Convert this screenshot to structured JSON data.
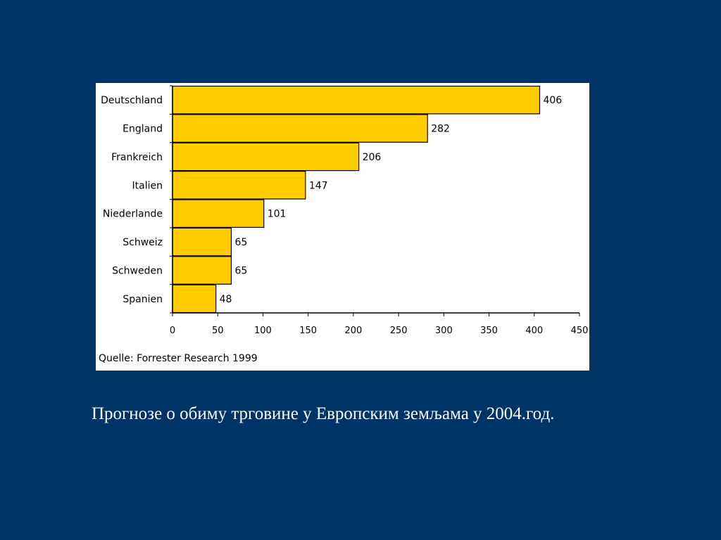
{
  "slide": {
    "background": "#003366",
    "caption": "Прогнозе о обиму трговине у Европским земљама у 2004.год."
  },
  "chart_data": {
    "type": "bar",
    "orientation": "horizontal",
    "categories": [
      "Deutschland",
      "England",
      "Frankreich",
      "Italien",
      "Niederlande",
      "Schweiz",
      "Schweden",
      "Spanien"
    ],
    "values": [
      406,
      282,
      206,
      147,
      101,
      65,
      65,
      48
    ],
    "data_labels": [
      "406",
      "282",
      "206",
      "147",
      "101",
      "65",
      "65",
      "48"
    ],
    "xlim": [
      0,
      450
    ],
    "x_ticks": [
      0,
      50,
      100,
      150,
      200,
      250,
      300,
      350,
      400,
      450
    ],
    "source": "Quelle: Forrester Research 1999",
    "bar_color": "#FFCC00",
    "grid": false,
    "legend": "none"
  }
}
